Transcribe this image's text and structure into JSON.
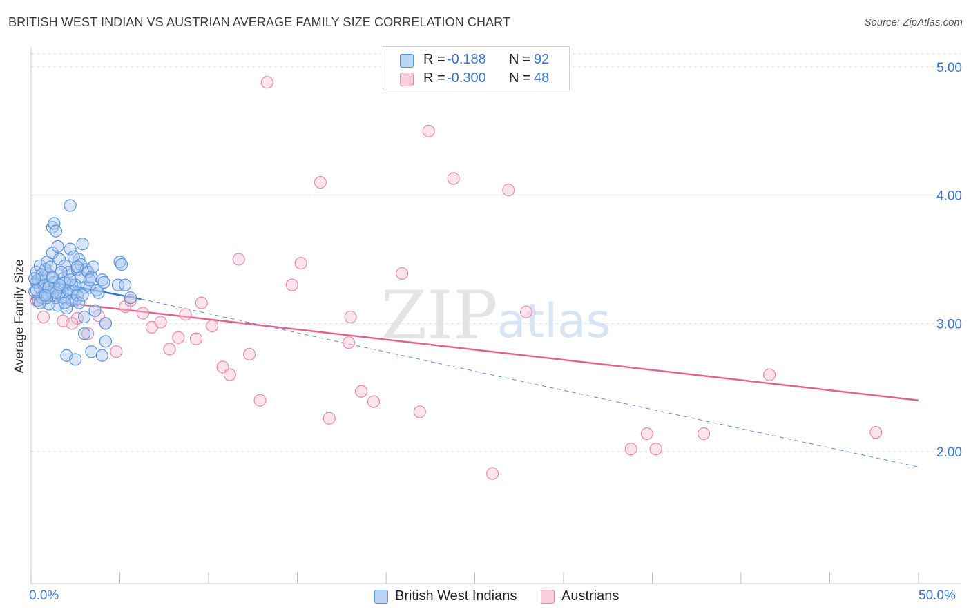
{
  "title": "BRITISH WEST INDIAN VS AUSTRIAN AVERAGE FAMILY SIZE CORRELATION CHART",
  "source": "Source: ZipAtlas.com",
  "watermark": {
    "zip": "ZIP",
    "atlas": "atlas"
  },
  "legend": {
    "series": [
      {
        "r_label": "R =",
        "r_value": "-0.188",
        "n_label": "N =",
        "n_value": "92"
      },
      {
        "r_label": "R =",
        "r_value": "-0.300",
        "n_label": "N =",
        "n_value": "48"
      }
    ]
  },
  "bottom_legend": [
    "British West Indians",
    "Austrians"
  ],
  "colors": {
    "blue_fill": "#a9c8f0",
    "blue_stroke": "#5b93db",
    "blue_line": "#2f6fd6",
    "pink_fill": "#f6c3d3",
    "pink_stroke": "#e88aa9",
    "pink_line": "#e0648f",
    "axis_text": "#3a76d0",
    "grid": "#dcdcdc"
  },
  "chart_data": {
    "type": "scatter",
    "title": "BRITISH WEST INDIAN VS AUSTRIAN AVERAGE FAMILY SIZE CORRELATION CHART",
    "xlabel": "",
    "ylabel": "Average Family Size",
    "xlim": [
      0,
      50
    ],
    "ylim": [
      1.0,
      5.15
    ],
    "x_tick_labels": [
      "0.0%",
      "50.0%"
    ],
    "y_ticks": [
      2.0,
      3.0,
      4.0,
      5.0
    ],
    "y_tick_labels": [
      "2.00",
      "3.00",
      "4.00",
      "5.00"
    ],
    "grid": true,
    "legend_position": "top-center",
    "series": [
      {
        "name": "British West Indians",
        "r": -0.188,
        "n": 92,
        "trend": {
          "x": [
            0,
            6.2
          ],
          "y": [
            3.35,
            3.19
          ]
        },
        "trend_extended": {
          "x": [
            6.2,
            50
          ],
          "y": [
            3.19,
            1.88
          ]
        },
        "points": [
          [
            0.2,
            3.25
          ],
          [
            0.3,
            3.32
          ],
          [
            0.4,
            3.18
          ],
          [
            0.3,
            3.4
          ],
          [
            0.5,
            3.28
          ],
          [
            0.6,
            3.35
          ],
          [
            0.7,
            3.22
          ],
          [
            0.5,
            3.45
          ],
          [
            0.8,
            3.3
          ],
          [
            0.9,
            3.48
          ],
          [
            1.0,
            3.38
          ],
          [
            1.1,
            3.25
          ],
          [
            1.2,
            3.55
          ],
          [
            1.0,
            3.15
          ],
          [
            0.8,
            3.42
          ],
          [
            1.3,
            3.32
          ],
          [
            1.4,
            3.2
          ],
          [
            1.5,
            3.6
          ],
          [
            1.6,
            3.5
          ],
          [
            1.7,
            3.28
          ],
          [
            1.8,
            3.35
          ],
          [
            1.9,
            3.45
          ],
          [
            2.0,
            3.22
          ],
          [
            2.1,
            3.4
          ],
          [
            2.2,
            3.58
          ],
          [
            2.3,
            3.3
          ],
          [
            2.4,
            3.25
          ],
          [
            2.5,
            3.18
          ],
          [
            2.6,
            3.42
          ],
          [
            2.7,
            3.5
          ],
          [
            2.8,
            3.36
          ],
          [
            2.9,
            3.62
          ],
          [
            3.0,
            3.28
          ],
          [
            1.2,
            3.75
          ],
          [
            1.3,
            3.78
          ],
          [
            1.4,
            3.72
          ],
          [
            2.2,
            3.92
          ],
          [
            0.6,
            3.2
          ],
          [
            0.4,
            3.34
          ],
          [
            0.7,
            3.3
          ],
          [
            1.1,
            3.44
          ],
          [
            1.5,
            3.14
          ],
          [
            1.6,
            3.24
          ],
          [
            1.8,
            3.2
          ],
          [
            1.9,
            3.32
          ],
          [
            2.0,
            3.12
          ],
          [
            2.1,
            3.26
          ],
          [
            2.3,
            3.18
          ],
          [
            2.4,
            3.52
          ],
          [
            2.5,
            3.3
          ],
          [
            2.6,
            3.22
          ],
          [
            2.7,
            3.16
          ],
          [
            2.8,
            3.46
          ],
          [
            3.1,
            3.42
          ],
          [
            3.2,
            3.4
          ],
          [
            3.3,
            3.28
          ],
          [
            3.4,
            3.36
          ],
          [
            3.5,
            3.44
          ],
          [
            3.6,
            3.1
          ],
          [
            3.7,
            3.26
          ],
          [
            4.0,
            3.34
          ],
          [
            4.1,
            3.32
          ],
          [
            3.0,
            3.05
          ],
          [
            4.2,
            3.0
          ],
          [
            5.0,
            3.48
          ],
          [
            5.1,
            3.46
          ],
          [
            4.9,
            3.3
          ],
          [
            5.3,
            3.3
          ],
          [
            5.6,
            3.2
          ],
          [
            3.0,
            2.92
          ],
          [
            4.2,
            2.86
          ],
          [
            3.4,
            2.78
          ],
          [
            4.0,
            2.75
          ],
          [
            2.0,
            2.75
          ],
          [
            2.5,
            2.72
          ],
          [
            0.3,
            3.26
          ],
          [
            0.6,
            3.38
          ],
          [
            0.9,
            3.2
          ],
          [
            1.7,
            3.4
          ],
          [
            1.0,
            3.28
          ],
          [
            1.4,
            3.24
          ],
          [
            1.9,
            3.16
          ],
          [
            2.2,
            3.34
          ],
          [
            2.9,
            3.22
          ],
          [
            3.3,
            3.34
          ],
          [
            0.2,
            3.35
          ],
          [
            0.5,
            3.16
          ],
          [
            1.2,
            3.36
          ],
          [
            2.6,
            3.44
          ],
          [
            3.8,
            3.24
          ],
          [
            0.8,
            3.22
          ],
          [
            1.6,
            3.3
          ]
        ]
      },
      {
        "name": "Austrians",
        "r": -0.3,
        "n": 48,
        "trend": {
          "x": [
            0,
            50
          ],
          "y": [
            3.19,
            2.4
          ]
        },
        "points": [
          [
            0.3,
            3.18
          ],
          [
            0.7,
            3.05
          ],
          [
            1.2,
            3.22
          ],
          [
            1.8,
            3.02
          ],
          [
            2.6,
            3.04
          ],
          [
            2.3,
            3.0
          ],
          [
            3.2,
            2.92
          ],
          [
            3.8,
            3.06
          ],
          [
            4.2,
            3.0
          ],
          [
            4.8,
            2.78
          ],
          [
            5.3,
            3.13
          ],
          [
            5.6,
            3.18
          ],
          [
            6.3,
            3.08
          ],
          [
            6.8,
            2.97
          ],
          [
            7.3,
            3.01
          ],
          [
            7.8,
            2.8
          ],
          [
            8.3,
            2.89
          ],
          [
            8.7,
            3.07
          ],
          [
            9.3,
            2.88
          ],
          [
            9.6,
            3.16
          ],
          [
            10.2,
            2.98
          ],
          [
            10.8,
            2.66
          ],
          [
            11.2,
            2.6
          ],
          [
            11.7,
            3.5
          ],
          [
            12.3,
            2.76
          ],
          [
            12.9,
            2.4
          ],
          [
            13.3,
            4.88
          ],
          [
            14.7,
            3.3
          ],
          [
            15.2,
            3.47
          ],
          [
            16.3,
            4.1
          ],
          [
            16.8,
            2.26
          ],
          [
            18.0,
            3.05
          ],
          [
            17.9,
            2.85
          ],
          [
            18.6,
            2.47
          ],
          [
            19.3,
            2.39
          ],
          [
            20.9,
            3.39
          ],
          [
            21.9,
            2.31
          ],
          [
            22.4,
            4.5
          ],
          [
            23.8,
            4.13
          ],
          [
            26.0,
            1.83
          ],
          [
            26.9,
            4.04
          ],
          [
            27.9,
            3.09
          ],
          [
            33.8,
            2.02
          ],
          [
            34.7,
            2.14
          ],
          [
            35.2,
            2.02
          ],
          [
            37.9,
            2.14
          ],
          [
            41.6,
            2.6
          ],
          [
            47.6,
            2.15
          ]
        ]
      }
    ]
  }
}
